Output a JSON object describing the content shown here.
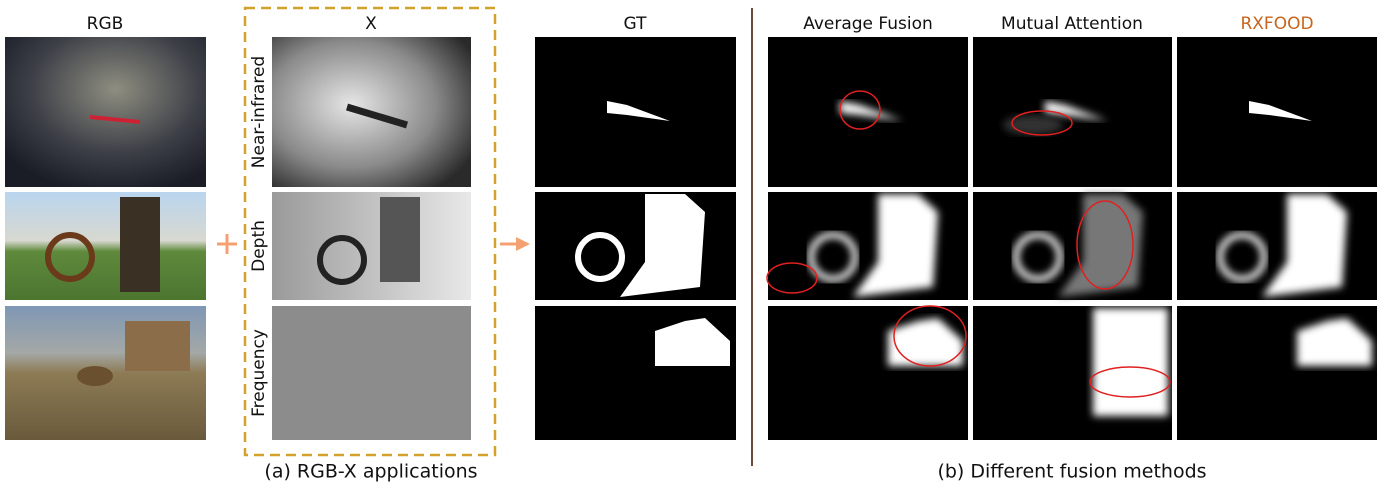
{
  "panel_a": {
    "headers": [
      "RGB",
      "X",
      "GT"
    ],
    "modalities": [
      "Near-infrared",
      "Depth",
      "Frequency"
    ],
    "caption": "(a) RGB-X applications"
  },
  "panel_b": {
    "headers": [
      "Average Fusion",
      "Mutual Attention",
      "RXFOOD"
    ],
    "caption": "(b) Different fusion methods"
  }
}
